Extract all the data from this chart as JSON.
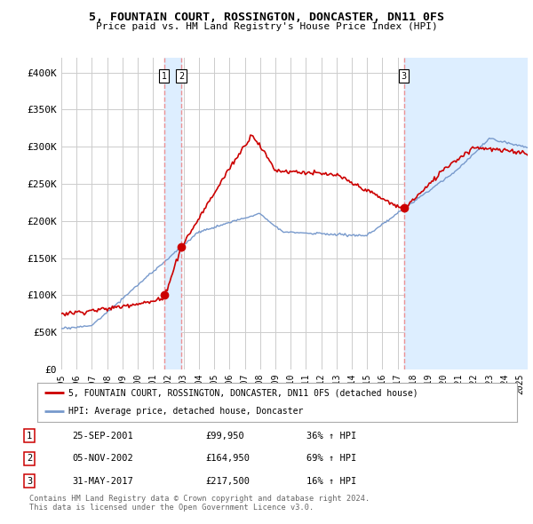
{
  "title": "5, FOUNTAIN COURT, ROSSINGTON, DONCASTER, DN11 0FS",
  "subtitle": "Price paid vs. HM Land Registry's House Price Index (HPI)",
  "ylabel_ticks": [
    "£0",
    "£50K",
    "£100K",
    "£150K",
    "£200K",
    "£250K",
    "£300K",
    "£350K",
    "£400K"
  ],
  "ytick_values": [
    0,
    50000,
    100000,
    150000,
    200000,
    250000,
    300000,
    350000,
    400000
  ],
  "ylim": [
    0,
    410000
  ],
  "xlim_start": 1995.0,
  "xlim_end": 2025.5,
  "transactions": [
    {
      "num": 1,
      "date_str": "25-SEP-2001",
      "price": 99950,
      "pct": "36% ↑ HPI",
      "year": 2001.73
    },
    {
      "num": 2,
      "date_str": "05-NOV-2002",
      "price": 164950,
      "pct": "69% ↑ HPI",
      "year": 2002.84
    },
    {
      "num": 3,
      "date_str": "31-MAY-2017",
      "price": 217500,
      "pct": "16% ↑ HPI",
      "year": 2017.41
    }
  ],
  "legend_line1": "5, FOUNTAIN COURT, ROSSINGTON, DONCASTER, DN11 0FS (detached house)",
  "legend_line2": "HPI: Average price, detached house, Doncaster",
  "footer1": "Contains HM Land Registry data © Crown copyright and database right 2024.",
  "footer2": "This data is licensed under the Open Government Licence v3.0.",
  "line_color_red": "#cc0000",
  "line_color_blue": "#7799cc",
  "vline_color": "#ee8888",
  "shade_color": "#ddeeff",
  "background_color": "#ffffff",
  "grid_color": "#cccccc"
}
